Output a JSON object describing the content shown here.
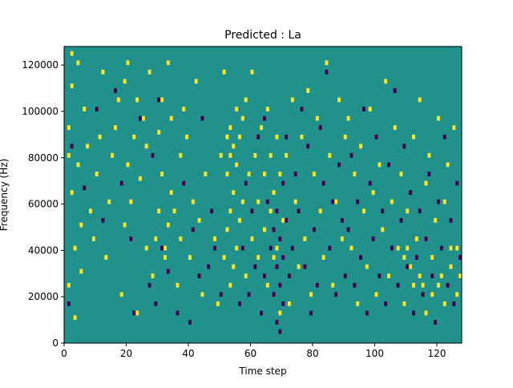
{
  "chart_data": {
    "type": "heatmap",
    "title": "Predicted : La",
    "xlabel": "Time step",
    "ylabel": "Frequency (Hz)",
    "xlim": [
      0,
      128
    ],
    "ylim": [
      0,
      128000
    ],
    "x_ticks": [
      0,
      20,
      40,
      60,
      80,
      100,
      120
    ],
    "y_ticks": [
      0,
      20000,
      40000,
      60000,
      80000,
      100000,
      120000
    ],
    "x_tick_labels": [
      "0",
      "20",
      "40",
      "60",
      "80",
      "100",
      "120"
    ],
    "y_tick_labels": [
      "0",
      "20000",
      "40000",
      "60000",
      "80000",
      "100000",
      "120000"
    ],
    "n_time_steps": 128,
    "n_freq_bins": 64,
    "bin_width_hz": 2000,
    "value_levels": [
      -1,
      0,
      1
    ],
    "colors": {
      "low": "#440154",
      "mid": "#21918c",
      "high": "#fde725"
    },
    "background_value": 0,
    "cells": [
      [
        1,
        40,
        1
      ],
      [
        1,
        46,
        1
      ],
      [
        1,
        12,
        1
      ],
      [
        2,
        55,
        1
      ],
      [
        2,
        62,
        1
      ],
      [
        2,
        32,
        1
      ],
      [
        1,
        8,
        -1
      ],
      [
        2,
        42,
        -1
      ],
      [
        3,
        20,
        1
      ],
      [
        3,
        5,
        1
      ],
      [
        4,
        38,
        1
      ],
      [
        4,
        60,
        1
      ],
      [
        5,
        15,
        1
      ],
      [
        5,
        25,
        1
      ],
      [
        6,
        50,
        1
      ],
      [
        7,
        42,
        1
      ],
      [
        6,
        33,
        -1
      ],
      [
        8,
        28,
        1
      ],
      [
        9,
        22,
        1
      ],
      [
        10,
        36,
        1
      ],
      [
        11,
        44,
        1
      ],
      [
        12,
        58,
        1
      ],
      [
        13,
        18,
        1
      ],
      [
        14,
        30,
        1
      ],
      [
        15,
        40,
        1
      ],
      [
        16,
        46,
        1
      ],
      [
        17,
        52,
        1
      ],
      [
        18,
        10,
        1
      ],
      [
        19,
        56,
        1
      ],
      [
        19,
        25,
        1
      ],
      [
        20,
        38,
        1
      ],
      [
        20,
        60,
        1
      ],
      [
        21,
        30,
        1
      ],
      [
        22,
        44,
        1
      ],
      [
        23,
        52,
        1
      ],
      [
        23,
        6,
        1
      ],
      [
        24,
        35,
        1
      ],
      [
        25,
        48,
        1
      ],
      [
        26,
        20,
        1
      ],
      [
        26,
        42,
        1
      ],
      [
        27,
        58,
        1
      ],
      [
        28,
        14,
        1
      ],
      [
        29,
        22,
        1
      ],
      [
        30,
        45,
        1
      ],
      [
        30,
        28,
        1
      ],
      [
        31,
        36,
        1
      ],
      [
        31,
        52,
        1
      ],
      [
        32,
        20,
        1
      ],
      [
        32,
        18,
        1
      ],
      [
        33,
        60,
        1
      ],
      [
        33,
        25,
        1
      ],
      [
        34,
        48,
        1
      ],
      [
        34,
        32,
        1
      ],
      [
        10,
        50,
        -1
      ],
      [
        12,
        26,
        -1
      ],
      [
        16,
        54,
        -1
      ],
      [
        18,
        34,
        -1
      ],
      [
        21,
        22,
        -1
      ],
      [
        22,
        6,
        -1
      ],
      [
        24,
        48,
        -1
      ],
      [
        27,
        12,
        -1
      ],
      [
        28,
        40,
        -1
      ],
      [
        29,
        8,
        -1
      ],
      [
        30,
        52,
        -1
      ],
      [
        31,
        20,
        -1
      ],
      [
        33,
        15,
        -1
      ],
      [
        35,
        28,
        1
      ],
      [
        36,
        12,
        1
      ],
      [
        37,
        40,
        1
      ],
      [
        37,
        22,
        1
      ],
      [
        38,
        50,
        1
      ],
      [
        39,
        44,
        1
      ],
      [
        40,
        18,
        1
      ],
      [
        41,
        30,
        1
      ],
      [
        42,
        56,
        1
      ],
      [
        43,
        26,
        1
      ],
      [
        44,
        10,
        1
      ],
      [
        45,
        36,
        1
      ],
      [
        36,
        6,
        -1
      ],
      [
        38,
        34,
        -1
      ],
      [
        40,
        4,
        -1
      ],
      [
        41,
        24,
        -1
      ],
      [
        43,
        14,
        -1
      ],
      [
        44,
        48,
        -1
      ],
      [
        46,
        16,
        -1
      ],
      [
        47,
        28,
        -1
      ],
      [
        48,
        22,
        1
      ],
      [
        49,
        8,
        1
      ],
      [
        50,
        40,
        1
      ],
      [
        51,
        58,
        1
      ],
      [
        50,
        10,
        -1
      ],
      [
        48,
        20,
        -1
      ],
      [
        51,
        18,
        1
      ],
      [
        52,
        24,
        1
      ],
      [
        52,
        36,
        1
      ],
      [
        52,
        44,
        1
      ],
      [
        53,
        12,
        1
      ],
      [
        53,
        28,
        1
      ],
      [
        53,
        40,
        1
      ],
      [
        53,
        46,
        1
      ],
      [
        54,
        16,
        1
      ],
      [
        54,
        32,
        1
      ],
      [
        54,
        42,
        1
      ],
      [
        55,
        20,
        1
      ],
      [
        55,
        38,
        1
      ],
      [
        55,
        50,
        1
      ],
      [
        56,
        26,
        1
      ],
      [
        56,
        44,
        1
      ],
      [
        57,
        30,
        1
      ],
      [
        57,
        48,
        1
      ],
      [
        58,
        14,
        1
      ],
      [
        58,
        52,
        1
      ],
      [
        59,
        36,
        1
      ],
      [
        60,
        22,
        1
      ],
      [
        60,
        58,
        1
      ],
      [
        61,
        40,
        1
      ],
      [
        62,
        18,
        1
      ],
      [
        62,
        30,
        1
      ],
      [
        63,
        46,
        1
      ],
      [
        56,
        8,
        -1
      ],
      [
        57,
        20,
        -1
      ],
      [
        58,
        34,
        -1
      ],
      [
        59,
        10,
        -1
      ],
      [
        60,
        28,
        -1
      ],
      [
        61,
        16,
        -1
      ],
      [
        62,
        44,
        -1
      ],
      [
        63,
        6,
        -1
      ],
      [
        64,
        24,
        1
      ],
      [
        64,
        36,
        1
      ],
      [
        65,
        12,
        1
      ],
      [
        65,
        50,
        1
      ],
      [
        66,
        28,
        1
      ],
      [
        66,
        40,
        1
      ],
      [
        67,
        18,
        1
      ],
      [
        67,
        32,
        1
      ],
      [
        68,
        20,
        1
      ],
      [
        68,
        44,
        1
      ],
      [
        69,
        36,
        1
      ],
      [
        69,
        6,
        1
      ],
      [
        70,
        26,
        1
      ],
      [
        71,
        40,
        1
      ],
      [
        72,
        8,
        1
      ],
      [
        73,
        52,
        1
      ],
      [
        74,
        30,
        1
      ],
      [
        75,
        16,
        1
      ],
      [
        76,
        44,
        1
      ],
      [
        77,
        22,
        1
      ],
      [
        78,
        54,
        1
      ],
      [
        79,
        10,
        1
      ],
      [
        80,
        36,
        1
      ],
      [
        81,
        48,
        1
      ],
      [
        82,
        28,
        1
      ],
      [
        83,
        18,
        1
      ],
      [
        84,
        60,
        1
      ],
      [
        85,
        40,
        1
      ],
      [
        86,
        12,
        1
      ],
      [
        87,
        30,
        1
      ],
      [
        88,
        52,
        1
      ],
      [
        89,
        22,
        1
      ],
      [
        90,
        44,
        1
      ],
      [
        64,
        48,
        -1
      ],
      [
        64,
        14,
        -1
      ],
      [
        65,
        30,
        -1
      ],
      [
        66,
        20,
        -1
      ],
      [
        67,
        10,
        -1
      ],
      [
        67,
        24,
        -1
      ],
      [
        68,
        4,
        -1
      ],
      [
        68,
        16,
        -1
      ],
      [
        68,
        28,
        -1
      ],
      [
        69,
        2,
        -1
      ],
      [
        69,
        12,
        -1
      ],
      [
        69,
        22,
        -1
      ],
      [
        70,
        8,
        -1
      ],
      [
        70,
        18,
        -1
      ],
      [
        70,
        34,
        -1
      ],
      [
        71,
        26,
        -1
      ],
      [
        71,
        44,
        -1
      ],
      [
        72,
        14,
        -1
      ],
      [
        73,
        20,
        -1
      ],
      [
        74,
        36,
        -1
      ],
      [
        75,
        28,
        -1
      ],
      [
        76,
        50,
        -1
      ],
      [
        77,
        16,
        -1
      ],
      [
        78,
        42,
        -1
      ],
      [
        79,
        6,
        -1
      ],
      [
        80,
        24,
        -1
      ],
      [
        81,
        12,
        -1
      ],
      [
        82,
        46,
        -1
      ],
      [
        83,
        34,
        -1
      ],
      [
        84,
        58,
        -1
      ],
      [
        85,
        20,
        -1
      ],
      [
        86,
        30,
        -1
      ],
      [
        87,
        10,
        -1
      ],
      [
        88,
        38,
        -1
      ],
      [
        89,
        26,
        -1
      ],
      [
        90,
        14,
        -1
      ],
      [
        91,
        48,
        1
      ],
      [
        92,
        20,
        1
      ],
      [
        93,
        36,
        1
      ],
      [
        94,
        8,
        1
      ],
      [
        95,
        42,
        1
      ],
      [
        96,
        28,
        1
      ],
      [
        97,
        16,
        1
      ],
      [
        98,
        50,
        1
      ],
      [
        99,
        32,
        1
      ],
      [
        100,
        10,
        1
      ],
      [
        101,
        38,
        1
      ],
      [
        102,
        24,
        1
      ],
      [
        103,
        56,
        1
      ],
      [
        104,
        14,
        1
      ],
      [
        105,
        30,
        1
      ],
      [
        106,
        46,
        1
      ],
      [
        107,
        20,
        1
      ],
      [
        108,
        36,
        1
      ],
      [
        109,
        8,
        1
      ],
      [
        110,
        28,
        1
      ],
      [
        111,
        16,
        1
      ],
      [
        112,
        44,
        1
      ],
      [
        113,
        22,
        1
      ],
      [
        114,
        52,
        1
      ],
      [
        115,
        12,
        1
      ],
      [
        116,
        34,
        1
      ],
      [
        117,
        40,
        1
      ],
      [
        118,
        18,
        1
      ],
      [
        119,
        26,
        1
      ],
      [
        120,
        48,
        1
      ],
      [
        121,
        14,
        1
      ],
      [
        122,
        30,
        1
      ],
      [
        123,
        38,
        1
      ],
      [
        124,
        20,
        1
      ],
      [
        125,
        46,
        1
      ],
      [
        126,
        10,
        1
      ],
      [
        91,
        24,
        -1
      ],
      [
        92,
        40,
        -1
      ],
      [
        93,
        12,
        -1
      ],
      [
        94,
        30,
        -1
      ],
      [
        95,
        18,
        -1
      ],
      [
        96,
        50,
        -1
      ],
      [
        97,
        6,
        -1
      ],
      [
        98,
        34,
        -1
      ],
      [
        99,
        22,
        -1
      ],
      [
        100,
        44,
        -1
      ],
      [
        101,
        14,
        -1
      ],
      [
        102,
        28,
        -1
      ],
      [
        103,
        8,
        -1
      ],
      [
        104,
        38,
        -1
      ],
      [
        105,
        20,
        -1
      ],
      [
        106,
        54,
        -1
      ],
      [
        107,
        12,
        -1
      ],
      [
        108,
        26,
        -1
      ],
      [
        109,
        42,
        -1
      ],
      [
        110,
        16,
        -1
      ],
      [
        111,
        32,
        -1
      ],
      [
        112,
        6,
        -1
      ],
      [
        113,
        18,
        -1
      ],
      [
        114,
        28,
        -1
      ],
      [
        115,
        10,
        -1
      ],
      [
        116,
        22,
        -1
      ],
      [
        117,
        36,
        -1
      ],
      [
        118,
        14,
        -1
      ],
      [
        119,
        4,
        -1
      ],
      [
        120,
        30,
        -1
      ],
      [
        121,
        20,
        -1
      ],
      [
        122,
        44,
        -1
      ],
      [
        123,
        12,
        -1
      ],
      [
        124,
        26,
        -1
      ],
      [
        125,
        8,
        -1
      ],
      [
        126,
        34,
        -1
      ],
      [
        127,
        18,
        -1
      ],
      [
        116,
        6,
        1
      ],
      [
        118,
        10,
        1
      ],
      [
        120,
        12,
        1
      ],
      [
        122,
        8,
        1
      ],
      [
        124,
        16,
        1
      ],
      [
        126,
        20,
        1
      ],
      [
        127,
        14,
        1
      ],
      [
        109,
        18,
        1
      ],
      [
        110,
        20,
        1
      ],
      [
        112,
        12,
        1
      ],
      [
        114,
        14,
        1
      ]
    ]
  }
}
